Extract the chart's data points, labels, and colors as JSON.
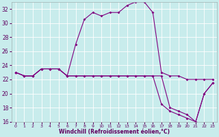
{
  "xlabel": "Windchill (Refroidissement éolien,°C)",
  "background_color": "#c8ecec",
  "line_color": "#800080",
  "xlim": [
    -0.5,
    23.5
  ],
  "ylim": [
    16,
    33
  ],
  "xticks": [
    0,
    1,
    2,
    3,
    4,
    5,
    6,
    7,
    8,
    9,
    10,
    11,
    12,
    13,
    14,
    15,
    16,
    17,
    18,
    19,
    20,
    21,
    22,
    23
  ],
  "yticks": [
    16,
    18,
    20,
    22,
    24,
    26,
    28,
    30,
    32
  ],
  "series1_x": [
    0,
    1,
    2,
    3,
    4,
    5,
    6,
    7,
    8,
    9,
    10,
    11,
    12,
    13,
    14,
    15,
    16,
    17,
    18,
    19,
    20,
    21,
    22,
    23
  ],
  "series1_y": [
    23.0,
    22.5,
    22.5,
    23.5,
    23.5,
    23.5,
    22.5,
    27.0,
    30.5,
    31.5,
    31.0,
    31.5,
    31.5,
    32.5,
    33.0,
    33.0,
    31.5,
    23.0,
    22.5,
    22.5,
    22.0,
    22.0,
    22.0,
    22.0
  ],
  "series2_x": [
    0,
    1,
    2,
    3,
    4,
    5,
    6,
    7,
    8,
    9,
    10,
    11,
    12,
    13,
    14,
    15,
    16,
    17,
    18,
    19,
    20,
    21,
    22,
    23
  ],
  "series2_y": [
    23.0,
    22.5,
    22.5,
    23.5,
    23.5,
    23.5,
    22.5,
    22.5,
    22.5,
    22.5,
    22.5,
    22.5,
    22.5,
    22.5,
    22.5,
    22.5,
    22.5,
    22.5,
    18.0,
    17.5,
    17.0,
    16.0,
    20.0,
    21.5
  ],
  "series3_x": [
    0,
    1,
    2,
    3,
    4,
    5,
    6,
    7,
    8,
    9,
    10,
    11,
    12,
    13,
    14,
    15,
    16,
    17,
    18,
    19,
    20,
    21,
    22,
    23
  ],
  "series3_y": [
    23.0,
    22.5,
    22.5,
    23.5,
    23.5,
    23.5,
    22.5,
    22.5,
    22.5,
    22.5,
    22.5,
    22.5,
    22.5,
    22.5,
    22.5,
    22.5,
    22.5,
    18.5,
    17.5,
    17.0,
    16.5,
    16.0,
    20.0,
    21.5
  ]
}
